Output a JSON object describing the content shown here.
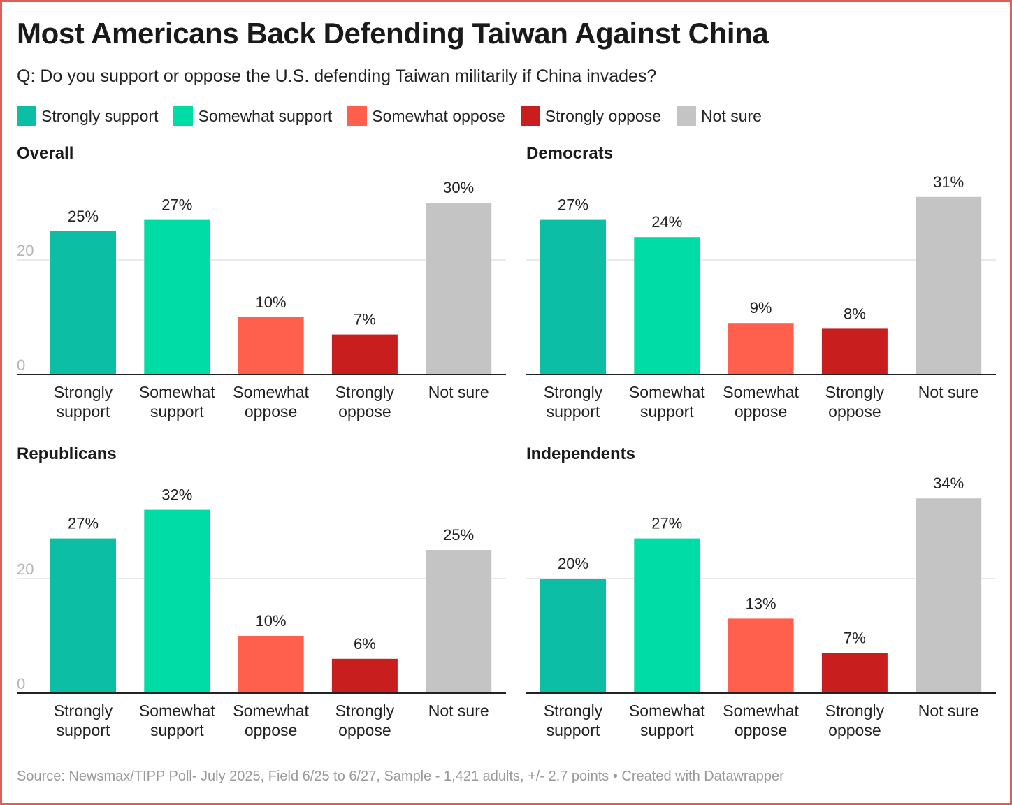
{
  "title": "Most Americans Back Defending Taiwan Against China",
  "subtitle": "Q: Do you support or oppose the U.S. defending Taiwan militarily if China invades?",
  "legend": [
    {
      "label": "Strongly support",
      "color": "#0cbea3"
    },
    {
      "label": "Somewhat support",
      "color": "#00dca6"
    },
    {
      "label": "Somewhat oppose",
      "color": "#ff5f4c"
    },
    {
      "label": "Strongly oppose",
      "color": "#c81e1e"
    },
    {
      "label": "Not sure",
      "color": "#c4c4c4"
    }
  ],
  "chart_data": [
    {
      "type": "bar",
      "title": "Overall",
      "categories": [
        [
          "Strongly",
          "support"
        ],
        [
          "Somewhat",
          "support"
        ],
        [
          "Somewhat",
          "oppose"
        ],
        [
          "Strongly",
          "oppose"
        ],
        [
          "Not sure"
        ]
      ],
      "values": [
        25,
        27,
        10,
        7,
        30
      ],
      "value_labels": [
        "25%",
        "27%",
        "10%",
        "7%",
        "30%"
      ],
      "colors": [
        "#0cbea3",
        "#00dca6",
        "#ff5f4c",
        "#c81e1e",
        "#c4c4c4"
      ],
      "yticks": [
        0,
        20
      ],
      "ylim": [
        0,
        30
      ]
    },
    {
      "type": "bar",
      "title": "Democrats",
      "categories": [
        [
          "Strongly",
          "support"
        ],
        [
          "Somewhat",
          "support"
        ],
        [
          "Somewhat",
          "oppose"
        ],
        [
          "Strongly",
          "oppose"
        ],
        [
          "Not sure"
        ]
      ],
      "values": [
        27,
        24,
        9,
        8,
        31
      ],
      "value_labels": [
        "27%",
        "24%",
        "9%",
        "8%",
        "31%"
      ],
      "colors": [
        "#0cbea3",
        "#00dca6",
        "#ff5f4c",
        "#c81e1e",
        "#c4c4c4"
      ],
      "yticks": [],
      "ylim": [
        0,
        30
      ]
    },
    {
      "type": "bar",
      "title": "Republicans",
      "categories": [
        [
          "Strongly",
          "support"
        ],
        [
          "Somewhat",
          "support"
        ],
        [
          "Somewhat",
          "oppose"
        ],
        [
          "Strongly",
          "oppose"
        ],
        [
          "Not sure"
        ]
      ],
      "values": [
        27,
        32,
        10,
        6,
        25
      ],
      "value_labels": [
        "27%",
        "32%",
        "10%",
        "6%",
        "25%"
      ],
      "colors": [
        "#0cbea3",
        "#00dca6",
        "#ff5f4c",
        "#c81e1e",
        "#c4c4c4"
      ],
      "yticks": [
        0,
        20
      ],
      "ylim": [
        0,
        30
      ]
    },
    {
      "type": "bar",
      "title": "Independents",
      "categories": [
        [
          "Strongly",
          "support"
        ],
        [
          "Somewhat",
          "support"
        ],
        [
          "Somewhat",
          "oppose"
        ],
        [
          "Strongly",
          "oppose"
        ],
        [
          "Not sure"
        ]
      ],
      "values": [
        20,
        27,
        13,
        7,
        34
      ],
      "value_labels": [
        "20%",
        "27%",
        "13%",
        "7%",
        "34%"
      ],
      "colors": [
        "#0cbea3",
        "#00dca6",
        "#ff5f4c",
        "#c81e1e",
        "#c4c4c4"
      ],
      "yticks": [],
      "ylim": [
        0,
        30
      ]
    }
  ],
  "footer": "Source: Newsmax/TIPP Poll- July 2025, Field 6/25 to 6/27, Sample - 1,421 adults, +/- 2.7 points • Created with Datawrapper"
}
